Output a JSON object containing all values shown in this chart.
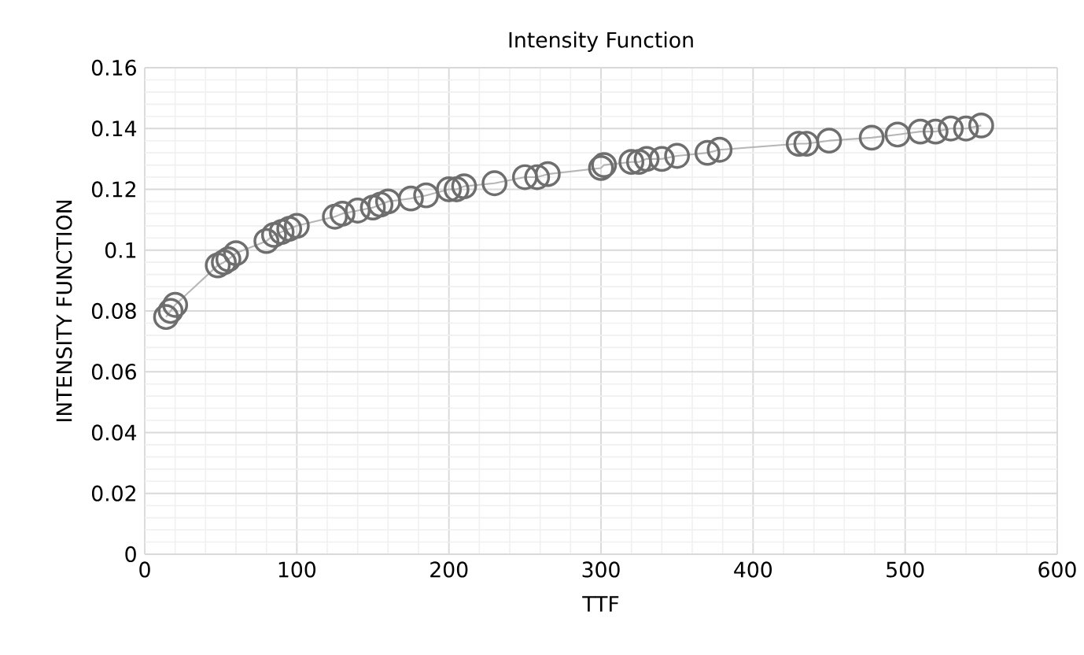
{
  "chart_data": {
    "type": "line",
    "title": "Intensity Function",
    "xlabel": "TTF",
    "ylabel": "INTENSITY FUNCTION",
    "x": [
      14,
      17,
      20,
      48,
      52,
      55,
      60,
      80,
      85,
      90,
      95,
      100,
      125,
      130,
      140,
      150,
      155,
      160,
      175,
      185,
      200,
      205,
      210,
      230,
      250,
      258,
      265,
      300,
      302,
      320,
      325,
      330,
      340,
      350,
      370,
      378,
      430,
      435,
      450,
      478,
      495,
      510,
      520,
      530,
      540,
      550
    ],
    "series": [
      {
        "color": "#6e6e6e",
        "values": [
          0.078,
          0.08,
          0.082,
          0.095,
          0.096,
          0.097,
          0.099,
          0.103,
          0.105,
          0.106,
          0.107,
          0.108,
          0.111,
          0.112,
          0.113,
          0.114,
          0.115,
          0.116,
          0.117,
          0.118,
          0.12,
          0.12,
          0.121,
          0.122,
          0.124,
          0.124,
          0.125,
          0.127,
          0.128,
          0.129,
          0.129,
          0.13,
          0.13,
          0.131,
          0.132,
          0.133,
          0.135,
          0.135,
          0.136,
          0.137,
          0.138,
          0.139,
          0.139,
          0.14,
          0.14,
          0.141
        ]
      }
    ],
    "xlim": [
      0,
      600
    ],
    "ylim": [
      0,
      0.16
    ],
    "xticks": [
      0,
      100,
      200,
      300,
      400,
      500,
      600
    ],
    "yticks": [
      0,
      0.02,
      0.04,
      0.06,
      0.08,
      0.1,
      0.12,
      0.14,
      0.16
    ],
    "grid": true,
    "marker": "circle",
    "line_style": "solid"
  }
}
